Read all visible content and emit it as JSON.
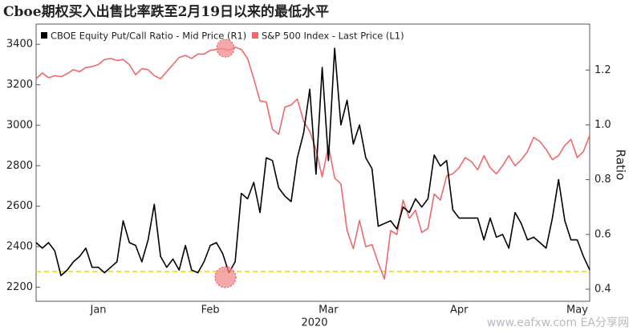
{
  "chart_data": {
    "type": "line",
    "title": "Cboe期权买入出售比率跌至2月19日以来的最低水平",
    "x_label": "2020",
    "y2_label": "Ratio",
    "watermark": "www.eafxw.com   EA分享网",
    "categories": [
      null,
      null,
      null,
      null,
      null,
      null,
      null,
      null,
      null,
      null,
      "Jan",
      null,
      null,
      null,
      null,
      null,
      null,
      null,
      null,
      null,
      null,
      null,
      null,
      null,
      null,
      null,
      null,
      null,
      "Feb",
      null,
      null,
      null,
      null,
      null,
      null,
      null,
      null,
      null,
      null,
      null,
      null,
      null,
      null,
      null,
      null,
      null,
      null,
      "Mar",
      null,
      null,
      null,
      null,
      null,
      null,
      null,
      null,
      null,
      null,
      null,
      null,
      null,
      null,
      null,
      null,
      null,
      null,
      null,
      null,
      "Apr",
      null,
      null,
      null,
      null,
      null,
      null,
      null,
      null,
      null,
      null,
      null,
      null,
      null,
      null,
      null,
      null,
      null,
      null,
      "May",
      null,
      null
    ],
    "series": [
      {
        "name": "CBOE Equity Put/Call Ratio - Mid Price (R1)",
        "color": "#000000",
        "axis": "y2",
        "values": [
          0.57,
          0.55,
          0.57,
          0.54,
          0.45,
          0.47,
          0.5,
          0.52,
          0.55,
          0.48,
          0.48,
          0.46,
          0.48,
          0.5,
          0.65,
          0.57,
          0.56,
          0.5,
          0.58,
          0.71,
          0.52,
          0.48,
          0.51,
          0.47,
          0.56,
          0.47,
          0.46,
          0.5,
          0.56,
          0.57,
          0.53,
          0.46,
          0.5,
          0.75,
          0.73,
          0.79,
          0.68,
          0.88,
          0.87,
          0.77,
          0.74,
          0.72,
          0.88,
          0.97,
          1.13,
          0.82,
          1.21,
          0.87,
          1.28,
          1.0,
          1.09,
          0.93,
          1.0,
          0.88,
          0.84,
          0.63,
          0.64,
          0.65,
          0.62,
          0.7,
          0.68,
          0.73,
          0.7,
          0.73,
          0.89,
          0.85,
          0.87,
          0.69,
          0.66,
          0.66,
          0.66,
          0.66,
          0.58,
          0.66,
          0.59,
          0.6,
          0.55,
          0.68,
          0.64,
          0.58,
          0.59,
          0.57,
          0.55,
          0.66,
          0.8,
          0.65,
          0.58,
          0.58,
          0.52,
          0.47
        ]
      },
      {
        "name": "S&P 500 Index - Last Price (L1)",
        "color": "#f0686a",
        "axis": "y",
        "values": [
          3230,
          3258,
          3235,
          3245,
          3240,
          3255,
          3275,
          3265,
          3285,
          3290,
          3300,
          3325,
          3330,
          3320,
          3325,
          3300,
          3250,
          3280,
          3275,
          3245,
          3230,
          3265,
          3300,
          3335,
          3345,
          3330,
          3352,
          3352,
          3370,
          3375,
          3380,
          3370,
          3386,
          3375,
          3330,
          3230,
          3120,
          3115,
          2980,
          2955,
          3090,
          3100,
          3130,
          3020,
          2970,
          2880,
          2745,
          2900,
          2740,
          2710,
          2480,
          2390,
          2530,
          2400,
          2410,
          2320,
          2240,
          2480,
          2460,
          2630,
          2540,
          2580,
          2470,
          2490,
          2660,
          2630,
          2750,
          2760,
          2790,
          2840,
          2820,
          2780,
          2850,
          2790,
          2760,
          2800,
          2850,
          2800,
          2830,
          2870,
          2940,
          2920,
          2880,
          2830,
          2850,
          2900,
          2930,
          2840,
          2870,
          2950
        ]
      }
    ],
    "reference_line": {
      "value": 0.465,
      "axis": "y2",
      "color": "#f2e22a"
    },
    "ylim": [
      2130,
      3500
    ],
    "yticks": [
      2200,
      2400,
      2600,
      2800,
      3000,
      3200,
      3400
    ],
    "y2lim": [
      0.356,
      1.368
    ],
    "y2ticks": [
      0.4,
      0.6,
      0.8,
      {
        "value": 1,
        "label": "1.0"
      },
      1.2
    ]
  }
}
